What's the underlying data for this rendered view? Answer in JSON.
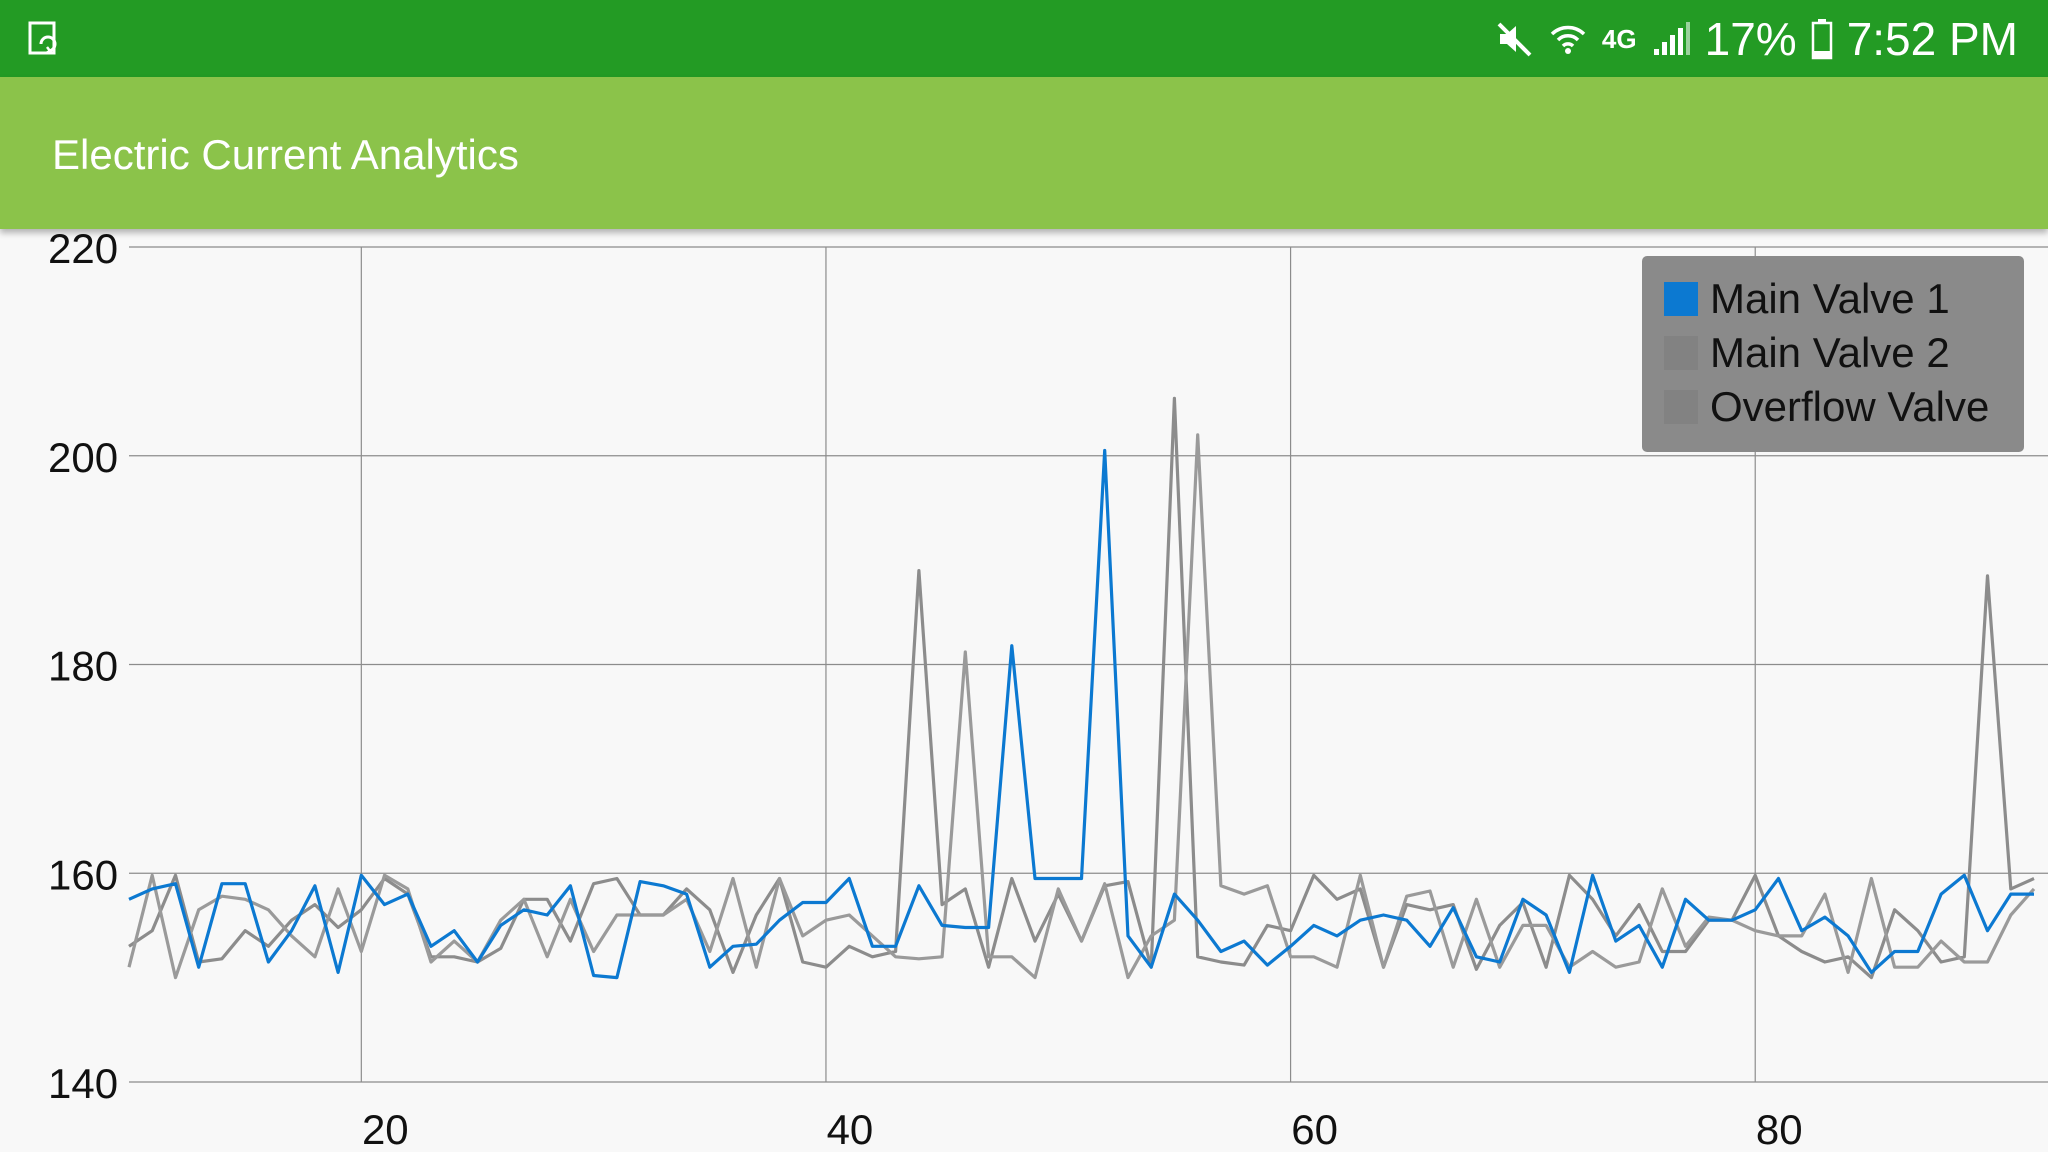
{
  "status_bar": {
    "left_icon": "screen-rotation-icon",
    "icons": [
      "mute-icon",
      "wifi-icon",
      "4g-lte-icon",
      "signal-icon",
      "battery-icon"
    ],
    "network": "4G",
    "battery": "17%",
    "time": "7:52 PM",
    "background": "#239b24"
  },
  "app_bar": {
    "title": "Electric Current Analytics",
    "background": "#8bc34a"
  },
  "chart_data": {
    "type": "line",
    "title": "",
    "xlabel": "",
    "ylabel": "",
    "xlim": [
      10,
      92
    ],
    "ylim": [
      140,
      220
    ],
    "x_ticks": [
      20,
      40,
      60,
      80
    ],
    "y_ticks": [
      140,
      160,
      180,
      200,
      220
    ],
    "x_tick_labels": [
      "20",
      "40",
      "60",
      "80"
    ],
    "y_tick_labels": [
      "140",
      "160",
      "180",
      "200",
      "220"
    ],
    "grid": true,
    "legend_position": "top-right",
    "x": [
      10,
      11,
      12,
      13,
      14,
      15,
      16,
      17,
      18,
      19,
      20,
      21,
      22,
      23,
      24,
      25,
      26,
      27,
      28,
      29,
      30,
      31,
      32,
      33,
      34,
      35,
      36,
      37,
      38,
      39,
      40,
      41,
      42,
      43,
      44,
      45,
      46,
      47,
      48,
      49,
      50,
      51,
      52,
      53,
      54,
      55,
      56,
      57,
      58,
      59,
      60,
      61,
      62,
      63,
      64,
      65,
      66,
      67,
      68,
      69,
      70,
      71,
      72,
      73,
      74,
      75,
      76,
      77,
      78,
      79,
      80,
      81,
      82,
      83,
      84,
      85,
      86,
      87,
      88,
      89,
      90,
      91,
      92
    ],
    "series": [
      {
        "name": "Main Valve 1",
        "color": "#0c79d1",
        "values": [
          157.5,
          158.5,
          159,
          151,
          159,
          159,
          151.5,
          154.5,
          158.8,
          150.5,
          159.8,
          157,
          158,
          153,
          154.5,
          151.5,
          155,
          156.5,
          156,
          158.8,
          150.2,
          150,
          159.2,
          158.8,
          158,
          151,
          153,
          153.2,
          155.5,
          157.2,
          157.2,
          159.5,
          153,
          153,
          158.8,
          155,
          154.8,
          154.8,
          181.8,
          159.5,
          159.5,
          159.5,
          200.5,
          154,
          151,
          158,
          155.5,
          152.5,
          153.5,
          151.2,
          153,
          155,
          154,
          155.5,
          156,
          155.5,
          153,
          156.7,
          152,
          151.5,
          157.5,
          156,
          150.5,
          159.8,
          153.5,
          155,
          151,
          157.5,
          155.5,
          155.5,
          156.5,
          159.5,
          154.5,
          155.8,
          154,
          150.5,
          152.5,
          152.5,
          158,
          159.8,
          154.5,
          158,
          158
        ]
      },
      {
        "name": "Main Valve 2",
        "color": "#8c8c8c",
        "values": [
          153,
          154.5,
          159.8,
          151.5,
          151.8,
          154.5,
          153,
          155.5,
          157,
          154.8,
          156.5,
          159.5,
          158,
          152,
          152,
          151.5,
          152.8,
          157.5,
          157.5,
          153.5,
          159,
          159.5,
          156,
          156,
          158.5,
          156.5,
          150.5,
          156,
          159.5,
          151.5,
          151,
          153,
          152,
          152.5,
          189,
          157,
          158.5,
          151,
          159.5,
          153.5,
          158,
          153.5,
          158.8,
          159.2,
          151,
          205.5,
          152,
          151.5,
          151.2,
          155,
          154.5,
          159.8,
          157.5,
          158.5,
          151,
          157,
          156.5,
          157,
          150.8,
          155,
          157.2,
          151,
          159.8,
          157.5,
          154,
          157,
          152.5,
          152.5,
          155.5,
          155.5,
          159.8,
          154,
          152.5,
          151.5,
          152,
          150,
          156.5,
          154.5,
          151.5,
          152,
          188.5,
          158.5,
          159.5
        ]
      },
      {
        "name": "Overflow Valve",
        "color": "#9a9a9a",
        "values": [
          151,
          159.8,
          150,
          156.5,
          157.8,
          157.5,
          156.5,
          154,
          152,
          158.5,
          152.5,
          159.8,
          158.5,
          151.5,
          153.5,
          151.5,
          155.5,
          157.5,
          152,
          157.5,
          152.5,
          156,
          156,
          156,
          157.5,
          152.5,
          159.5,
          151,
          159.5,
          154,
          155.5,
          156,
          154,
          152,
          151.8,
          152,
          181.2,
          152,
          152,
          150,
          158.5,
          153.5,
          159,
          150,
          154,
          155.5,
          202,
          158.8,
          158,
          158.8,
          152,
          152,
          151,
          159.8,
          151,
          157.8,
          158.3,
          151,
          157.5,
          151,
          155,
          155,
          151,
          152.5,
          151,
          151.5,
          158.5,
          153,
          155.8,
          155.5,
          154.5,
          154,
          154,
          158,
          150.5,
          159.5,
          151,
          151,
          153.5,
          151.5,
          151.5,
          156,
          158.5
        ]
      }
    ]
  }
}
